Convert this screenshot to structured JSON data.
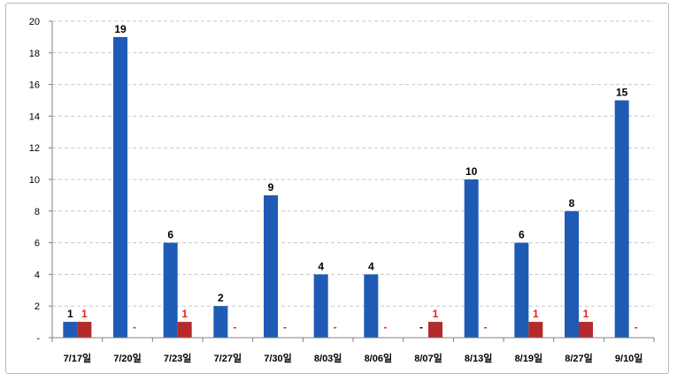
{
  "chart_data": {
    "type": "bar",
    "categories": [
      "7/17일",
      "7/20일",
      "7/23일",
      "7/27일",
      "7/30일",
      "8/03일",
      "8/06일",
      "8/07일",
      "8/13일",
      "8/19일",
      "8/27일",
      "9/10일"
    ],
    "series": [
      {
        "color": "#1f5bb5",
        "values": [
          1,
          19,
          6,
          2,
          9,
          4,
          4,
          0,
          10,
          6,
          8,
          15
        ],
        "labels": [
          "1",
          "19",
          "6",
          "2",
          "9",
          "4",
          "4",
          "-",
          "10",
          "6",
          "8",
          "15"
        ],
        "label_color": "#000000"
      },
      {
        "color": "#b52a2a",
        "values": [
          1,
          0,
          1,
          0,
          0,
          0,
          0,
          1,
          0,
          1,
          1,
          0
        ],
        "labels": [
          "1",
          "-",
          "1",
          "-",
          "-",
          "-",
          "-",
          "1",
          "-",
          "1",
          "1",
          "-"
        ],
        "label_color": "#e8211c"
      }
    ],
    "y_ticks": [
      "-",
      "2",
      "4",
      "6",
      "8",
      "10",
      "12",
      "14",
      "16",
      "18",
      "20"
    ],
    "ylim": [
      0,
      20
    ],
    "grid": true,
    "legend": "none"
  }
}
